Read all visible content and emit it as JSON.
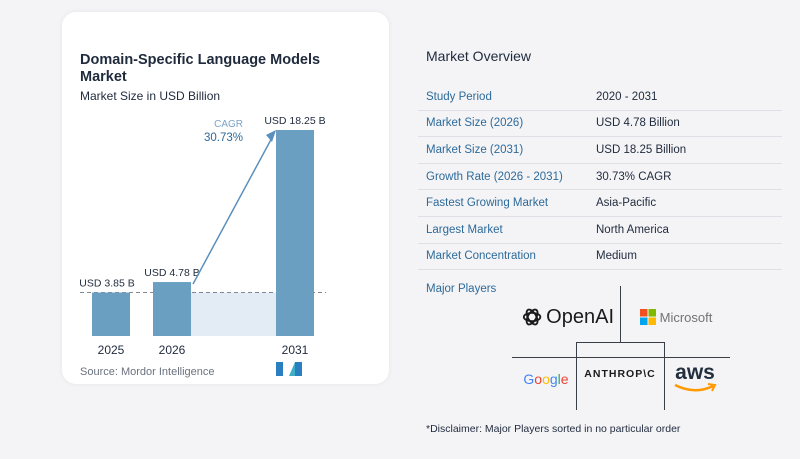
{
  "chart_data": {
    "type": "bar",
    "title": "Domain-Specific Language Models Market",
    "subtitle": "Market Size in USD Billion",
    "categories": [
      "2025",
      "2026",
      "2031"
    ],
    "values": [
      3.85,
      4.78,
      18.25
    ],
    "data_labels": [
      "USD 3.85 B",
      "USD 4.78 B",
      "USD 18.25 B"
    ],
    "annotation": {
      "label": "CAGR",
      "value": "30.73%"
    },
    "colors": {
      "bar": "#6b9fc2",
      "area": "#e3ecf4",
      "arrow": "#5b8fbc",
      "dashed": "#7f8a96"
    }
  },
  "source": "Source:  Mordor Intelligence",
  "overview": {
    "title": "Market Overview",
    "rows": [
      {
        "key": "Study Period",
        "value": "2020 - 2031"
      },
      {
        "key": "Market Size (2026)",
        "value": "USD 4.78 Billion"
      },
      {
        "key": "Market Size (2031)",
        "value": "USD 18.25 Billion"
      },
      {
        "key": "Growth Rate (2026 - 2031)",
        "value": "30.73% CAGR"
      },
      {
        "key": "Fastest Growing Market",
        "value": "Asia-Pacific"
      },
      {
        "key": "Largest Market",
        "value": "North America"
      },
      {
        "key": "Market Concentration",
        "value": "Medium"
      }
    ],
    "players_label": "Major Players",
    "players": [
      "OpenAI",
      "Microsoft",
      "Google",
      "ANTHROP\\C",
      "aws"
    ],
    "disclaimer": "*Disclaimer: Major Players sorted in no particular order"
  }
}
